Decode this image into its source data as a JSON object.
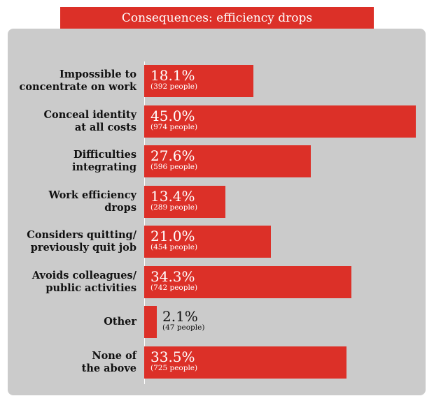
{
  "title": "Consequences: efficiency drops",
  "colors": {
    "bar": "#dc3028",
    "panel": "#cbcbcb",
    "title_bg": "#dc3028"
  },
  "chart_data": {
    "type": "bar",
    "orientation": "horizontal",
    "title": "Consequences: efficiency drops",
    "xlim": [
      0,
      45
    ],
    "grid": false,
    "categories": [
      [
        "Impossible to",
        "concentrate on work"
      ],
      [
        "Conceal identity",
        "at all costs"
      ],
      [
        "Difficulties",
        "integrating"
      ],
      [
        "Work efficiency",
        "drops"
      ],
      [
        "Considers quitting/",
        "previously quit job"
      ],
      [
        "Avoids colleagues/",
        "public activities"
      ],
      [
        "Other"
      ],
      [
        "None of",
        "the above"
      ]
    ],
    "values": [
      18.1,
      45.0,
      27.6,
      13.4,
      21.0,
      34.3,
      2.1,
      33.5
    ],
    "value_labels": [
      "18.1%",
      "45.0%",
      "27.6%",
      "13.4%",
      "21.0%",
      "34.3%",
      "2.1%",
      "33.5%"
    ],
    "people_labels": [
      "(392 people)",
      "(974 people)",
      "(596 people)",
      "(289 people)",
      "(454 people)",
      "(742 people)",
      "(47 people)",
      "(725 people)"
    ]
  }
}
